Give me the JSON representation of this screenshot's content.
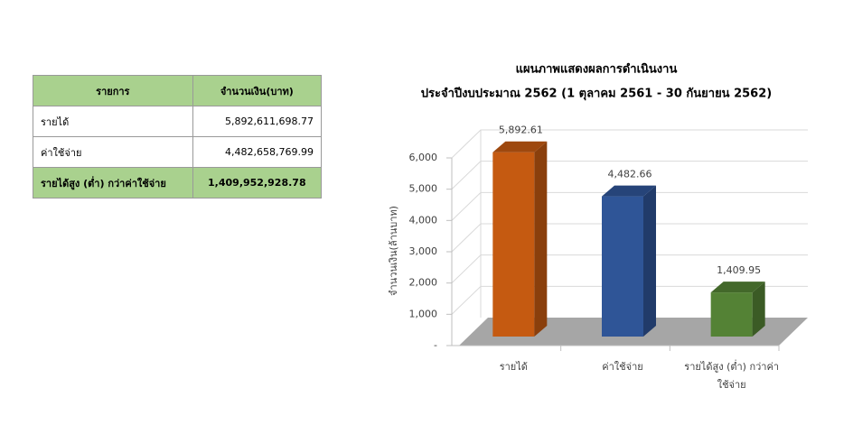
{
  "table": {
    "header": [
      "รายการ",
      "จำนวนเงิน(บาท)"
    ],
    "rows": [
      [
        "รายได้",
        "5,892,611,698.77"
      ],
      [
        "ค่าใช้จ่าย",
        "4,482,658,769.99"
      ],
      [
        "รายได้สูง (ต่ำ) กว่าค่าใช้จ่าย",
        "1,409,952,928.78"
      ]
    ]
  },
  "chart_data": {
    "type": "bar3d",
    "title": "แผนภาพแสดงผลการดำเนินงาน",
    "subtitle": "ประจำปีงบประมาณ 2562 (1 ตุลาคม 2561 - 30 กันยายน 2562)",
    "y_label": "จำนวนเงิน(ล้านบาท)",
    "categories": [
      "รายได้",
      "ค่าใช้จ่าย",
      "รายได้สูง (ต่ำ) กว่าค่าใช้จ่าย"
    ],
    "values": [
      5892.61,
      4482.66,
      1409.95
    ],
    "value_labels": [
      "5,892.61",
      "4,482.66",
      "1,409.95"
    ],
    "colors": [
      "#c55a11",
      "#2f5597",
      "#548235"
    ],
    "ylim": [
      0,
      6000
    ],
    "yticks": [
      {
        "value": 0,
        "label": "-"
      },
      {
        "value": 1000,
        "label": "1,000"
      },
      {
        "value": 2000,
        "label": "2,000"
      },
      {
        "value": 3000,
        "label": "3,000"
      },
      {
        "value": 4000,
        "label": "4,000"
      },
      {
        "value": 5000,
        "label": "5,000"
      },
      {
        "value": 6000,
        "label": "6,000"
      }
    ],
    "grid": true
  }
}
